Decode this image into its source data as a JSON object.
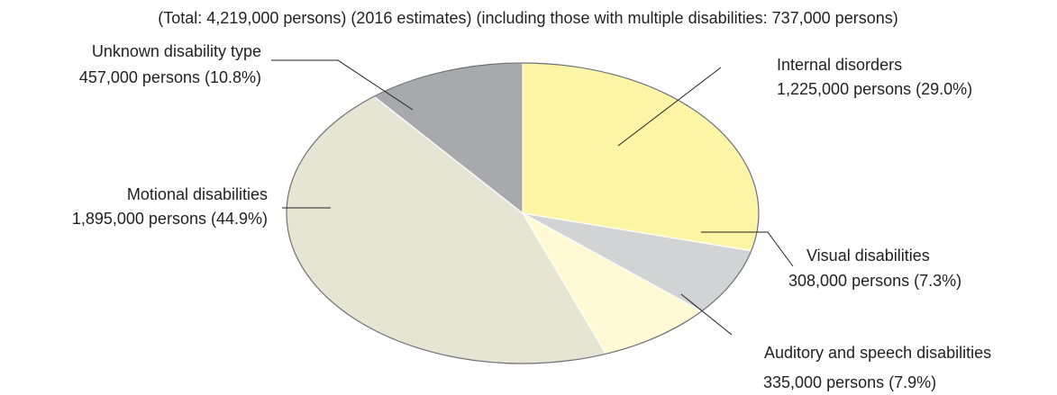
{
  "chart_data": {
    "type": "pie",
    "subtitle": "(Total: 4,219,000 persons) (2016 estimates) (including those with multiple disabilities: 737,000 persons)",
    "slices": [
      {
        "name": "Internal disorders",
        "value": 1225000,
        "percent": 29.0,
        "value_label": "1,225,000 persons (29.0%)",
        "color": "#fdf5a6"
      },
      {
        "name": "Visual disabilities",
        "value": 308000,
        "percent": 7.3,
        "value_label": "308,000 persons (7.3%)",
        "color": "#d1d3d4"
      },
      {
        "name": "Auditory and speech disabilities",
        "value": 335000,
        "percent": 7.9,
        "value_label": "335,000 persons (7.9%)",
        "color": "#fffad4"
      },
      {
        "name": "Motional disabilities",
        "value": 1895000,
        "percent": 44.9,
        "value_label": "1,895,000 persons (44.9%)",
        "color": "#e6e4d3"
      },
      {
        "name": "Unknown disability type",
        "value": 457000,
        "percent": 10.8,
        "value_label": "457,000 persons (10.8%)",
        "color": "#a7a9ac"
      }
    ]
  }
}
